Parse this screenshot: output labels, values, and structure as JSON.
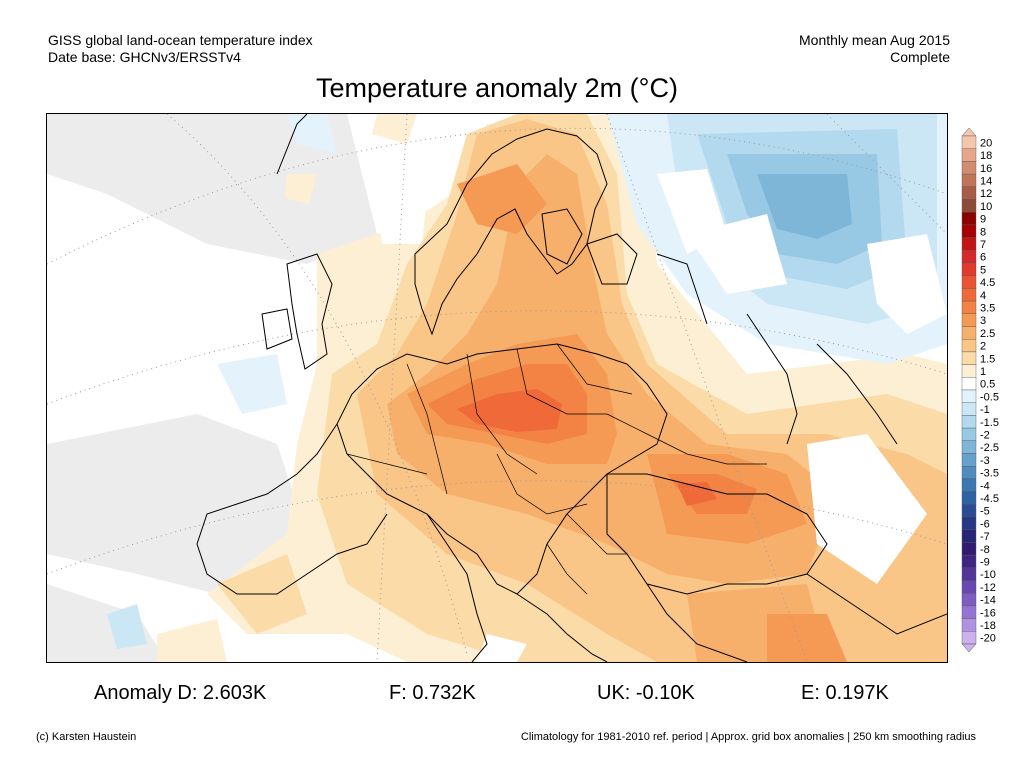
{
  "header": {
    "line1_left": "GISS global land-ocean temperature index",
    "line2_left": "Date base: GHCNv3/ERSSTv4",
    "line1_right": "Monthly mean Aug 2015",
    "line2_right": "Complete"
  },
  "title": "Temperature anomaly 2m (°C)",
  "stats": {
    "d": "Anomaly D: 2.603K",
    "f": "F: 0.732K",
    "uk": "UK: -0.10K",
    "e": "E: 0.197K"
  },
  "footer": {
    "left": "(c) Karsten Haustein",
    "right": "Climatology for 1981-2010 ref. period | Approx. grid box anomalies | 250 km smoothing radius"
  },
  "colorbar": {
    "labels": [
      "20",
      "18",
      "16",
      "14",
      "12",
      "10",
      "9",
      "8",
      "7",
      "6",
      "5",
      "4.5",
      "4",
      "3.5",
      "3",
      "2.5",
      "2",
      "1.5",
      "1",
      "0.5",
      "-0.5",
      "-1",
      "-1.5",
      "-2",
      "-2.5",
      "-3",
      "-3.5",
      "-4",
      "-4.5",
      "-5",
      "-6",
      "-7",
      "-8",
      "-9",
      "-10",
      "-12",
      "-14",
      "-16",
      "-18",
      "-20"
    ],
    "colors": [
      "#f4c6ad",
      "#e7a589",
      "#d38c70",
      "#c07458",
      "#a85c45",
      "#8e4a39",
      "#8b0000",
      "#a80000",
      "#c21515",
      "#d62a2a",
      "#e23a2c",
      "#ea5432",
      "#ef6a38",
      "#f28344",
      "#f59a55",
      "#f7b06b",
      "#f9c687",
      "#fbdba8",
      "#fdefd3",
      "#ffffff",
      "#e3f2fb",
      "#cbe7f6",
      "#b2d9ee",
      "#98c9e4",
      "#7eb6d8",
      "#65a2cc",
      "#4f8dbf",
      "#3b78b2",
      "#2f62a5",
      "#2a4c96",
      "#283687",
      "#28247a",
      "#2f1c72",
      "#3f2484",
      "#53359a",
      "#6848b0",
      "#7e5cc3",
      "#9674d4",
      "#b091e2",
      "#ccb1ee"
    ]
  },
  "map": {
    "projection": "polar-stereographic Europe",
    "legend_unit": "°C"
  }
}
